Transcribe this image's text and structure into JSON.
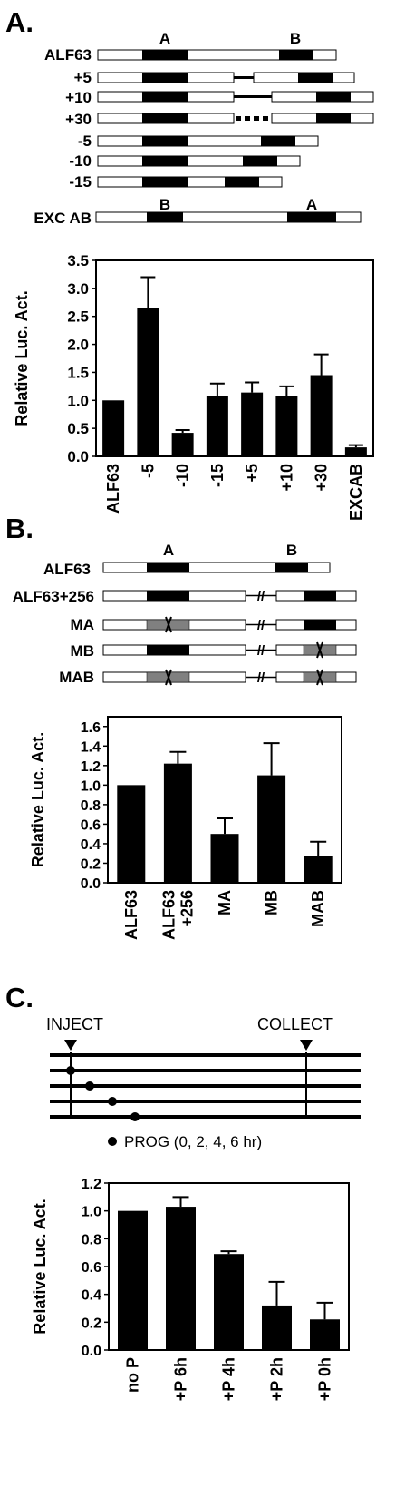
{
  "panels": {
    "a": {
      "letter": "A.",
      "constructs": [
        {
          "label": "ALF63"
        },
        {
          "label": "+5"
        },
        {
          "label": "+10"
        },
        {
          "label": "+30"
        },
        {
          "label": "-5"
        },
        {
          "label": "-10"
        },
        {
          "label": "-15"
        },
        {
          "label": "EXC AB"
        }
      ],
      "site_labels": {
        "a": "A",
        "b": "B"
      }
    },
    "b": {
      "letter": "B.",
      "constructs": [
        {
          "label": "ALF63"
        },
        {
          "label": "ALF63+256"
        },
        {
          "label": "MA"
        },
        {
          "label": "MB"
        },
        {
          "label": "MAB"
        }
      ],
      "site_labels": {
        "a": "A",
        "b": "B"
      }
    },
    "c": {
      "letter": "C.",
      "inject_label": "INJECT",
      "collect_label": "COLLECT",
      "legend": "PROG (0, 2, 4, 6 hr)"
    }
  },
  "chart_data": [
    {
      "type": "bar",
      "ylabel": "Relative Luc. Act.",
      "ylim": [
        0,
        3.5
      ],
      "yticks": [
        "0.0",
        "0.5",
        "1.0",
        "1.5",
        "2.0",
        "2.5",
        "3.0",
        "3.5"
      ],
      "categories": [
        "ALF63",
        "-5",
        "-10",
        "-15",
        "+5",
        "+10",
        "+30",
        "EXCAB"
      ],
      "values": [
        1.0,
        2.65,
        0.42,
        1.08,
        1.14,
        1.07,
        1.45,
        0.16
      ],
      "errors": [
        0,
        0.55,
        0.05,
        0.22,
        0.18,
        0.18,
        0.37,
        0.04
      ],
      "bar_color": "#000000"
    },
    {
      "type": "bar",
      "ylabel": "Relative Luc. Act.",
      "ylim": [
        0,
        1.7
      ],
      "yticks": [
        "0.0",
        "0.2",
        "0.4",
        "0.6",
        "0.8",
        "1.0",
        "1.2",
        "1.4",
        "1.6"
      ],
      "categories": [
        [
          "ALF63"
        ],
        [
          "ALF63",
          "+256"
        ],
        [
          "MA"
        ],
        [
          "MB"
        ],
        [
          "MAB"
        ]
      ],
      "values": [
        1.0,
        1.22,
        0.5,
        1.1,
        0.27
      ],
      "errors": [
        0,
        0.12,
        0.16,
        0.33,
        0.15
      ],
      "bar_color": "#000000"
    },
    {
      "type": "bar",
      "ylabel": "Relative Luc. Act.",
      "ylim": [
        0,
        1.2
      ],
      "yticks": [
        "0.0",
        "0.2",
        "0.4",
        "0.6",
        "0.8",
        "1.0",
        "1.2"
      ],
      "categories": [
        "no P",
        "+P 6h",
        "+P 4h",
        "+P 2h",
        "+P 0h"
      ],
      "values": [
        1.0,
        1.03,
        0.69,
        0.32,
        0.22
      ],
      "errors": [
        0,
        0.07,
        0.02,
        0.17,
        0.12
      ],
      "bar_color": "#000000"
    }
  ]
}
